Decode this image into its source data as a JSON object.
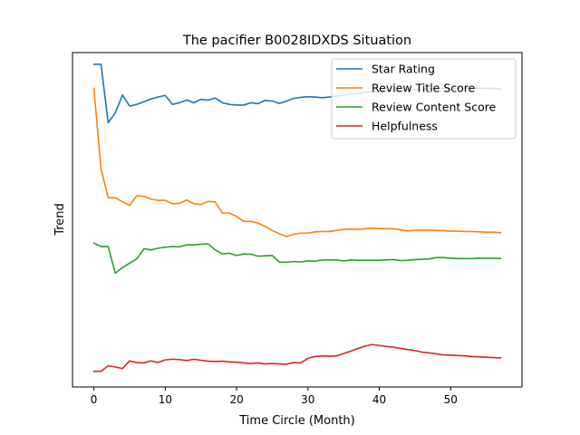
{
  "chart_data": {
    "type": "line",
    "title": "The pacifier B0028IDXDS Situation",
    "xlabel": "Time Circle (Month)",
    "ylabel": "Trend",
    "xlim": [
      -3,
      60
    ],
    "ylim": [
      0.0,
      1.0
    ],
    "xticks": [
      0,
      10,
      20,
      30,
      40,
      50
    ],
    "show_yticks": false,
    "grid": false,
    "legend_position": "top-right",
    "x": [
      0,
      1,
      2,
      3,
      4,
      5,
      6,
      7,
      8,
      9,
      10,
      11,
      12,
      13,
      14,
      15,
      16,
      17,
      18,
      19,
      20,
      21,
      22,
      23,
      24,
      25,
      26,
      27,
      28,
      29,
      30,
      31,
      32,
      33,
      34,
      35,
      36,
      37,
      38,
      39,
      40,
      41,
      42,
      43,
      44,
      45,
      46,
      47,
      48,
      49,
      50,
      51,
      52,
      53,
      54,
      55,
      56,
      57
    ],
    "series": [
      {
        "name": "Star Rating",
        "color": "#1f77b4",
        "values": [
          0.965,
          0.965,
          0.79,
          0.82,
          0.873,
          0.84,
          0.845,
          0.853,
          0.861,
          0.867,
          0.872,
          0.845,
          0.85,
          0.858,
          0.85,
          0.86,
          0.858,
          0.864,
          0.85,
          0.845,
          0.843,
          0.843,
          0.85,
          0.847,
          0.857,
          0.855,
          0.848,
          0.855,
          0.863,
          0.866,
          0.868,
          0.867,
          0.865,
          0.867,
          0.87,
          0.873,
          0.876,
          0.878,
          0.881,
          0.883,
          0.884,
          0.885,
          0.886,
          0.888,
          0.889,
          0.889,
          0.89,
          0.891,
          0.891,
          0.892,
          0.893,
          0.893,
          0.893,
          0.893,
          0.893,
          0.893,
          0.893,
          0.89
        ]
      },
      {
        "name": "Review Title Score",
        "color": "#ff7f0e",
        "values": [
          0.893,
          0.652,
          0.566,
          0.566,
          0.554,
          0.543,
          0.572,
          0.57,
          0.562,
          0.558,
          0.558,
          0.548,
          0.549,
          0.559,
          0.548,
          0.546,
          0.555,
          0.553,
          0.52,
          0.52,
          0.51,
          0.495,
          0.495,
          0.49,
          0.48,
          0.468,
          0.458,
          0.45,
          0.457,
          0.46,
          0.46,
          0.464,
          0.465,
          0.465,
          0.468,
          0.471,
          0.472,
          0.471,
          0.473,
          0.475,
          0.474,
          0.473,
          0.473,
          0.47,
          0.467,
          0.469,
          0.469,
          0.469,
          0.468,
          0.468,
          0.466,
          0.466,
          0.465,
          0.465,
          0.464,
          0.463,
          0.463,
          0.461
        ]
      },
      {
        "name": "Review Content Score",
        "color": "#2ca02c",
        "values": [
          0.43,
          0.42,
          0.42,
          0.34,
          0.357,
          0.37,
          0.383,
          0.413,
          0.41,
          0.415,
          0.418,
          0.42,
          0.419,
          0.425,
          0.425,
          0.427,
          0.428,
          0.41,
          0.398,
          0.4,
          0.393,
          0.398,
          0.397,
          0.391,
          0.392,
          0.393,
          0.373,
          0.373,
          0.375,
          0.374,
          0.377,
          0.376,
          0.38,
          0.38,
          0.38,
          0.377,
          0.38,
          0.379,
          0.379,
          0.379,
          0.379,
          0.38,
          0.381,
          0.378,
          0.379,
          0.381,
          0.382,
          0.383,
          0.387,
          0.387,
          0.385,
          0.384,
          0.384,
          0.384,
          0.385,
          0.385,
          0.385,
          0.384
        ]
      },
      {
        "name": "Helpfulness",
        "color": "#d62728",
        "values": [
          0.047,
          0.047,
          0.063,
          0.06,
          0.055,
          0.078,
          0.073,
          0.072,
          0.078,
          0.073,
          0.081,
          0.083,
          0.082,
          0.079,
          0.083,
          0.08,
          0.077,
          0.076,
          0.077,
          0.075,
          0.074,
          0.072,
          0.07,
          0.072,
          0.069,
          0.07,
          0.069,
          0.068,
          0.073,
          0.072,
          0.086,
          0.091,
          0.093,
          0.092,
          0.093,
          0.1,
          0.107,
          0.115,
          0.122,
          0.127,
          0.124,
          0.121,
          0.119,
          0.115,
          0.112,
          0.109,
          0.104,
          0.102,
          0.099,
          0.096,
          0.095,
          0.094,
          0.093,
          0.091,
          0.09,
          0.089,
          0.088,
          0.087
        ]
      }
    ]
  }
}
